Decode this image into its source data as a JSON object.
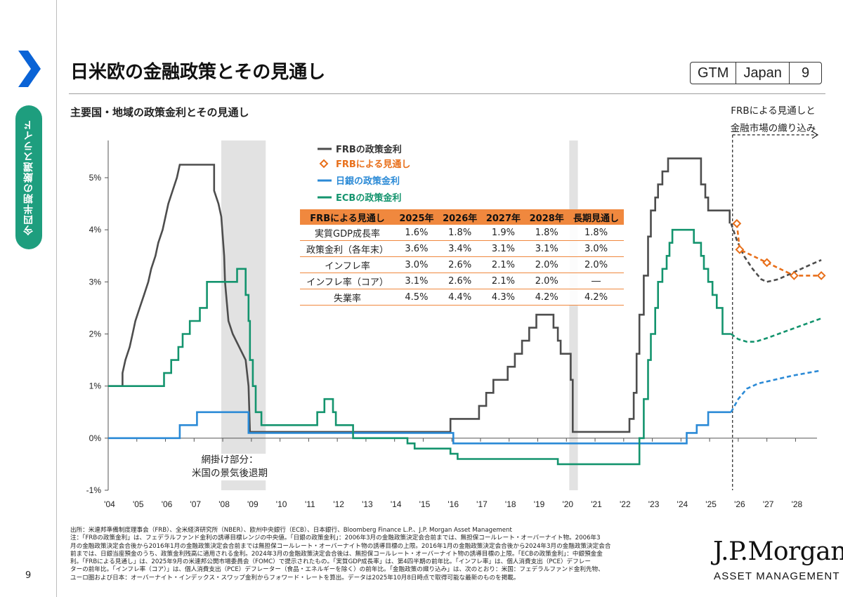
{
  "sidebar": {
    "tab_label": "今四半期の厳選スライド",
    "accent": "#1e9e7e",
    "chevron_color": "#0a63d6"
  },
  "header": {
    "title": "日米欧の金融政策とその見通し",
    "badge": [
      "GTM",
      "Japan",
      "9"
    ]
  },
  "subtitle": "主要国・地域の政策金利とその見通し",
  "forecast_label": [
    "FRBによる見通しと",
    "金融市場の織り込み"
  ],
  "shade_note": [
    "網掛け部分：",
    "米国の景気後退期"
  ],
  "fed_projection_table": {
    "headers": [
      "FRBによる見通し",
      "2025年",
      "2026年",
      "2027年",
      "2028年",
      "長期見通し"
    ],
    "rows": [
      [
        "実質GDP成長率",
        "1.6%",
        "1.8%",
        "1.9%",
        "1.8%",
        "1.8%"
      ],
      [
        "政策金利（各年末）",
        "3.6%",
        "3.4%",
        "3.1%",
        "3.1%",
        "3.0%"
      ],
      [
        "インフレ率",
        "3.0%",
        "2.6%",
        "2.1%",
        "2.0%",
        "2.0%"
      ],
      [
        "インフレ率（コア）",
        "3.1%",
        "2.6%",
        "2.1%",
        "2.0%",
        "―"
      ],
      [
        "失業率",
        "4.5%",
        "4.4%",
        "4.3%",
        "4.2%",
        "4.2%"
      ]
    ]
  },
  "chart_data": {
    "type": "line",
    "title": "主要国・地域の政策金利とその見通し",
    "xlabel": "",
    "ylabel": "",
    "xlim": [
      2004,
      2029
    ],
    "ylim": [
      -1,
      5.5
    ],
    "y_ticks": [
      -1,
      0,
      1,
      2,
      3,
      4,
      5
    ],
    "y_tick_labels": [
      "-1%",
      "0%",
      "1%",
      "2%",
      "3%",
      "4%",
      "5%"
    ],
    "x_ticks": [
      2004,
      2005,
      2006,
      2007,
      2008,
      2009,
      2010,
      2011,
      2012,
      2013,
      2014,
      2015,
      2016,
      2017,
      2018,
      2019,
      2020,
      2021,
      2022,
      2023,
      2024,
      2025,
      2026,
      2027,
      2028
    ],
    "x_tick_labels": [
      "'04",
      "'05",
      "'06",
      "'07",
      "'08",
      "'09",
      "'10",
      "'11",
      "'12",
      "'13",
      "'14",
      "'15",
      "'16",
      "'17",
      "'18",
      "'19",
      "'20",
      "'21",
      "'22",
      "'23",
      "'24",
      "'25",
      "'26",
      "'27",
      "'28"
    ],
    "forecast_start": 2025.8,
    "recessions": [
      [
        2007.95,
        2009.5
      ],
      [
        2020.1,
        2020.4
      ]
    ],
    "series": [
      {
        "name": "FRBの政策金利",
        "color": "#4d4d4d",
        "style": "step",
        "points": [
          [
            2004,
            1.0
          ],
          [
            2004.5,
            1.0
          ],
          [
            2004.5,
            1.25
          ],
          [
            2004.6,
            1.5
          ],
          [
            2004.75,
            1.75
          ],
          [
            2004.85,
            2.0
          ],
          [
            2004.95,
            2.25
          ],
          [
            2005.1,
            2.5
          ],
          [
            2005.25,
            2.75
          ],
          [
            2005.4,
            3.0
          ],
          [
            2005.5,
            3.25
          ],
          [
            2005.65,
            3.5
          ],
          [
            2005.75,
            3.75
          ],
          [
            2005.9,
            4.0
          ],
          [
            2006.1,
            4.5
          ],
          [
            2006.25,
            4.75
          ],
          [
            2006.4,
            5.0
          ],
          [
            2006.5,
            5.25
          ],
          [
            2007.7,
            5.25
          ],
          [
            2007.7,
            4.75
          ],
          [
            2007.85,
            4.5
          ],
          [
            2007.95,
            4.25
          ],
          [
            2008.05,
            3.5
          ],
          [
            2008.08,
            3.0
          ],
          [
            2008.2,
            2.25
          ],
          [
            2008.35,
            2.0
          ],
          [
            2008.8,
            1.5
          ],
          [
            2008.9,
            1.0
          ],
          [
            2008.95,
            0.12
          ],
          [
            2015.95,
            0.12
          ],
          [
            2015.95,
            0.37
          ],
          [
            2016.95,
            0.37
          ],
          [
            2016.95,
            0.62
          ],
          [
            2017.2,
            0.62
          ],
          [
            2017.2,
            0.87
          ],
          [
            2017.45,
            0.87
          ],
          [
            2017.45,
            1.12
          ],
          [
            2017.95,
            1.12
          ],
          [
            2017.95,
            1.37
          ],
          [
            2018.2,
            1.37
          ],
          [
            2018.2,
            1.62
          ],
          [
            2018.45,
            1.62
          ],
          [
            2018.45,
            1.87
          ],
          [
            2018.7,
            1.87
          ],
          [
            2018.7,
            2.12
          ],
          [
            2018.95,
            2.12
          ],
          [
            2018.95,
            2.37
          ],
          [
            2019.55,
            2.37
          ],
          [
            2019.55,
            2.12
          ],
          [
            2019.7,
            2.12
          ],
          [
            2019.7,
            1.87
          ],
          [
            2019.8,
            1.87
          ],
          [
            2019.8,
            1.62
          ],
          [
            2020.15,
            1.62
          ],
          [
            2020.15,
            1.12
          ],
          [
            2020.22,
            1.12
          ],
          [
            2020.22,
            0.12
          ],
          [
            2022.2,
            0.12
          ],
          [
            2022.2,
            0.37
          ],
          [
            2022.35,
            0.37
          ],
          [
            2022.35,
            0.87
          ],
          [
            2022.45,
            0.87
          ],
          [
            2022.45,
            1.62
          ],
          [
            2022.55,
            1.62
          ],
          [
            2022.55,
            2.37
          ],
          [
            2022.7,
            2.37
          ],
          [
            2022.7,
            3.12
          ],
          [
            2022.85,
            3.12
          ],
          [
            2022.85,
            3.87
          ],
          [
            2022.95,
            3.87
          ],
          [
            2022.95,
            4.37
          ],
          [
            2023.1,
            4.37
          ],
          [
            2023.1,
            4.62
          ],
          [
            2023.2,
            4.62
          ],
          [
            2023.2,
            4.87
          ],
          [
            2023.35,
            4.87
          ],
          [
            2023.35,
            5.12
          ],
          [
            2023.55,
            5.12
          ],
          [
            2023.55,
            5.37
          ],
          [
            2024.7,
            5.37
          ],
          [
            2024.7,
            4.87
          ],
          [
            2024.85,
            4.87
          ],
          [
            2024.85,
            4.62
          ],
          [
            2024.95,
            4.62
          ],
          [
            2024.95,
            4.37
          ],
          [
            2025.7,
            4.37
          ],
          [
            2025.7,
            4.12
          ]
        ]
      },
      {
        "name": "FRBの政策金利（先物）",
        "color": "#4d4d4d",
        "style": "dashed",
        "points": [
          [
            2025.75,
            4.12
          ],
          [
            2025.95,
            3.8
          ],
          [
            2026.2,
            3.5
          ],
          [
            2026.5,
            3.25
          ],
          [
            2026.8,
            3.05
          ],
          [
            2027.0,
            3.0
          ],
          [
            2027.4,
            3.05
          ],
          [
            2027.8,
            3.15
          ],
          [
            2028.2,
            3.25
          ],
          [
            2028.6,
            3.35
          ],
          [
            2028.9,
            3.42
          ]
        ]
      },
      {
        "name": "FRBによる見通し",
        "color": "#e86f1a",
        "style": "dashed-markers",
        "points": [
          [
            2025.95,
            4.12
          ],
          [
            2026.05,
            3.62
          ],
          [
            2027.0,
            3.37
          ],
          [
            2027.95,
            3.12
          ],
          [
            2028.9,
            3.12
          ]
        ]
      },
      {
        "name": "日銀の政策金利",
        "color": "#2b8ad6",
        "style": "step",
        "points": [
          [
            2004,
            0.0
          ],
          [
            2006.5,
            0.0
          ],
          [
            2006.5,
            0.25
          ],
          [
            2007.1,
            0.25
          ],
          [
            2007.1,
            0.5
          ],
          [
            2008.9,
            0.5
          ],
          [
            2008.9,
            0.1
          ],
          [
            2016.05,
            0.1
          ],
          [
            2016.05,
            -0.1
          ],
          [
            2024.2,
            -0.1
          ],
          [
            2024.2,
            0.1
          ],
          [
            2024.55,
            0.1
          ],
          [
            2024.55,
            0.25
          ],
          [
            2024.95,
            0.25
          ],
          [
            2024.95,
            0.5
          ],
          [
            2025.75,
            0.5
          ]
        ]
      },
      {
        "name": "日銀の政策金利（先物）",
        "color": "#2b8ad6",
        "style": "dashed",
        "points": [
          [
            2025.75,
            0.5
          ],
          [
            2026.0,
            0.75
          ],
          [
            2026.3,
            0.95
          ],
          [
            2026.7,
            1.05
          ],
          [
            2027.1,
            1.1
          ],
          [
            2027.5,
            1.15
          ],
          [
            2027.9,
            1.2
          ],
          [
            2028.4,
            1.25
          ],
          [
            2028.9,
            1.3
          ]
        ]
      },
      {
        "name": "ECBの政策金利",
        "color": "#14946e",
        "style": "step",
        "points": [
          [
            2004,
            1.0
          ],
          [
            2005.95,
            1.0
          ],
          [
            2005.95,
            1.25
          ],
          [
            2006.2,
            1.25
          ],
          [
            2006.2,
            1.5
          ],
          [
            2006.45,
            1.5
          ],
          [
            2006.45,
            1.75
          ],
          [
            2006.6,
            1.75
          ],
          [
            2006.6,
            2.0
          ],
          [
            2006.85,
            2.0
          ],
          [
            2006.85,
            2.25
          ],
          [
            2007.2,
            2.25
          ],
          [
            2007.2,
            2.5
          ],
          [
            2007.45,
            2.5
          ],
          [
            2007.45,
            3.0
          ],
          [
            2008.5,
            3.0
          ],
          [
            2008.5,
            3.25
          ],
          [
            2008.8,
            3.25
          ],
          [
            2008.8,
            2.75
          ],
          [
            2008.9,
            2.75
          ],
          [
            2008.9,
            2.25
          ],
          [
            2008.95,
            2.25
          ],
          [
            2008.95,
            1.5
          ],
          [
            2009.05,
            1.5
          ],
          [
            2009.05,
            1.0
          ],
          [
            2009.15,
            1.0
          ],
          [
            2009.15,
            0.5
          ],
          [
            2009.35,
            0.5
          ],
          [
            2009.35,
            0.25
          ],
          [
            2011.3,
            0.25
          ],
          [
            2011.3,
            0.5
          ],
          [
            2011.55,
            0.5
          ],
          [
            2011.55,
            0.75
          ],
          [
            2011.85,
            0.75
          ],
          [
            2011.85,
            0.5
          ],
          [
            2011.95,
            0.5
          ],
          [
            2011.95,
            0.25
          ],
          [
            2012.55,
            0.25
          ],
          [
            2012.55,
            0.0
          ],
          [
            2014.45,
            0.0
          ],
          [
            2014.45,
            -0.1
          ],
          [
            2014.7,
            -0.1
          ],
          [
            2014.7,
            -0.2
          ],
          [
            2015.95,
            -0.2
          ],
          [
            2015.95,
            -0.3
          ],
          [
            2016.2,
            -0.3
          ],
          [
            2016.2,
            -0.4
          ],
          [
            2019.7,
            -0.4
          ],
          [
            2019.7,
            -0.5
          ],
          [
            2022.55,
            -0.5
          ],
          [
            2022.55,
            0.0
          ],
          [
            2022.7,
            0.0
          ],
          [
            2022.7,
            0.75
          ],
          [
            2022.85,
            0.75
          ],
          [
            2022.85,
            1.5
          ],
          [
            2022.95,
            1.5
          ],
          [
            2022.95,
            2.0
          ],
          [
            2023.1,
            2.0
          ],
          [
            2023.1,
            2.5
          ],
          [
            2023.2,
            2.5
          ],
          [
            2023.2,
            3.0
          ],
          [
            2023.35,
            3.0
          ],
          [
            2023.35,
            3.25
          ],
          [
            2023.5,
            3.25
          ],
          [
            2023.5,
            3.5
          ],
          [
            2023.6,
            3.5
          ],
          [
            2023.6,
            3.75
          ],
          [
            2023.7,
            3.75
          ],
          [
            2023.7,
            4.0
          ],
          [
            2024.45,
            4.0
          ],
          [
            2024.45,
            3.75
          ],
          [
            2024.7,
            3.75
          ],
          [
            2024.7,
            3.5
          ],
          [
            2024.8,
            3.5
          ],
          [
            2024.8,
            3.25
          ],
          [
            2024.95,
            3.25
          ],
          [
            2024.95,
            3.0
          ],
          [
            2025.1,
            3.0
          ],
          [
            2025.1,
            2.75
          ],
          [
            2025.25,
            2.75
          ],
          [
            2025.25,
            2.5
          ],
          [
            2025.45,
            2.5
          ],
          [
            2025.45,
            2.0
          ],
          [
            2025.75,
            2.0
          ]
        ]
      },
      {
        "name": "ECBの政策金利（先物）",
        "color": "#14946e",
        "style": "dashed",
        "points": [
          [
            2025.75,
            2.0
          ],
          [
            2026.0,
            1.9
          ],
          [
            2026.3,
            1.85
          ],
          [
            2026.6,
            1.85
          ],
          [
            2027.0,
            1.92
          ],
          [
            2027.5,
            2.02
          ],
          [
            2028.0,
            2.12
          ],
          [
            2028.5,
            2.22
          ],
          [
            2028.9,
            2.3
          ]
        ]
      }
    ],
    "legend": {
      "placement": "top-center",
      "entries": [
        {
          "label": "FRBの政策金利",
          "color": "#4d4d4d",
          "marker": "line"
        },
        {
          "label": "FRBによる見通し",
          "color": "#e86f1a",
          "marker": "diamond"
        },
        {
          "label": "日銀の政策金利",
          "color": "#2b8ad6",
          "marker": "line"
        },
        {
          "label": "ECBの政策金利",
          "color": "#14946e",
          "marker": "line"
        }
      ]
    }
  },
  "source_lines": [
    "出所：米連邦準備制度理事会（FRB）、全米経済研究所（NBER）、欧州中央銀行（ECB）、日本銀行、Bloomberg Finance L.P.、J.P. Morgan Asset Management",
    "注：「FRBの政策金利」は、フェデラルファンド金利の誘導目標レンジの中央値。「日銀の政策金利」：2006年3月の金融政策決定会合前までは、無担保コールレート・オーバーナイト物。2006年3",
    "月の金融政策決定会合後から2016年1月の金融政策決定会合前までは無担保コールレート・オーバーナイト物の誘導目標の上限。2016年1月の金融政策決定会合後から2024年3月の金融政策決定会合",
    "前までは、日銀当座預金のうち、政策金利残高に適用される金利。2024年3月の金融政策決定会合後は、無担保コールレート・オーバーナイト物の誘導目標の上限。「ECBの政策金利」：中銀預金金",
    "利。「FRBによる見通し」は、2025年9月の米連邦公開市場委員会（FOMC）で提示されたもの。「実質GDP成長率」は、第4四半期の前年比。「インフレ率」は、個人消費支出（PCE）デフレー",
    "ターの前年比。「インフレ率（コア）」は、個人消費支出（PCE）デフレーター（食品・エネルギーを除く）の前年比。「金融政策の織り込み」は、次のとおり：米国：フェデラルファンド金利先物、",
    "ユーロ圏および日本：オーバーナイト・インデックス・スワップ金利からフォワード・レートを算出。データは2025年10月8日時点で取得可能な最新のものを掲載。"
  ],
  "footer": {
    "page_number": "9",
    "brand_line1": "J.P.Morgan",
    "brand_line2": "ASSET MANAGEMENT"
  }
}
